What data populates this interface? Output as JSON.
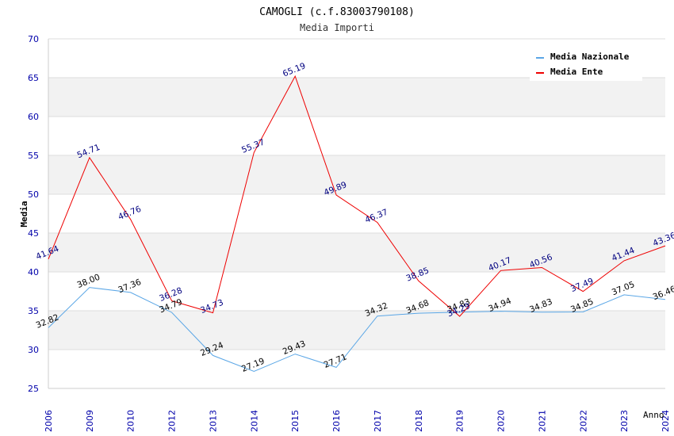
{
  "chart_data": {
    "type": "line",
    "title": "CAMOGLI (c.f.83003790108)",
    "subtitle": "Media Importi",
    "xlabel": "Anno",
    "ylabel": "Media",
    "ylim": [
      25,
      70
    ],
    "yticks": [
      "25",
      "30",
      "35",
      "40",
      "45",
      "50",
      "55",
      "60",
      "65",
      "70"
    ],
    "categories": [
      "2006",
      "2009",
      "2010",
      "2012",
      "2013",
      "2014",
      "2015",
      "2016",
      "2017",
      "2018",
      "2019",
      "2020",
      "2021",
      "2022",
      "2023",
      "2024"
    ],
    "series": [
      {
        "name": "Media Nazionale",
        "color": "#5aa6e6",
        "values": [
          32.82,
          38.0,
          37.36,
          34.79,
          29.24,
          27.19,
          29.43,
          27.71,
          34.32,
          34.68,
          34.83,
          34.94,
          34.83,
          34.85,
          37.05,
          36.46
        ],
        "labels": [
          "32.82",
          "38.00",
          "37.36",
          "34.79",
          "29.24",
          "27.19",
          "29.43",
          "27.71",
          "34.32",
          "34.68",
          "34.83",
          "34.94",
          "34.83",
          "34.85",
          "37.05",
          "36.46"
        ]
      },
      {
        "name": "Media Ente",
        "color": "#ee0000",
        "values": [
          41.64,
          54.71,
          46.76,
          36.28,
          34.73,
          55.37,
          65.19,
          49.89,
          46.37,
          38.85,
          34.29,
          40.17,
          40.56,
          37.49,
          41.44,
          43.36
        ],
        "labels": [
          "41.64",
          "54.71",
          "46.76",
          "36.28",
          "34.73",
          "55.37",
          "65.19",
          "49.89",
          "46.37",
          "38.85",
          "34.29",
          "40.17",
          "40.56",
          "37.49",
          "41.44",
          "43.36"
        ]
      }
    ],
    "grid": true,
    "legend": "top-right",
    "colors": {
      "band": "#f2f2f2",
      "gridline": "#dddddd",
      "axis_text": "#0000aa"
    }
  }
}
